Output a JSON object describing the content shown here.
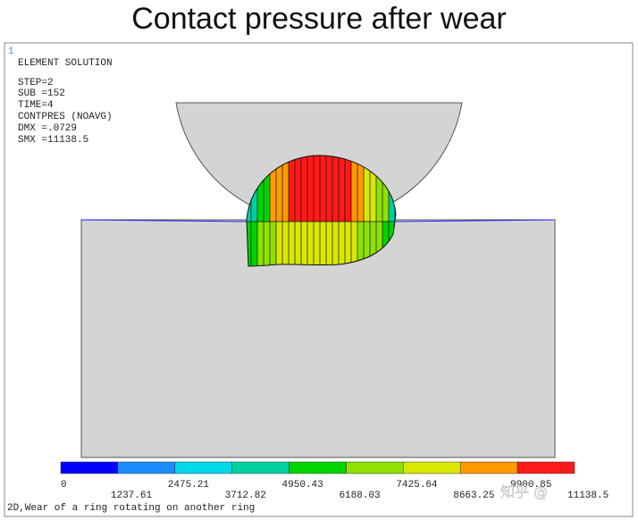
{
  "title": "Contact pressure after wear",
  "corner_label": "1",
  "info": [
    "ELEMENT SOLUTION",
    "STEP=2",
    "SUB =152",
    "TIME=4",
    "CONTPRES (NOAVG)",
    "DMX =.0729",
    "SMX =11138.5"
  ],
  "legend": {
    "colors": [
      "#0000ff",
      "#1a8cff",
      "#00d8e8",
      "#00d0a0",
      "#00d400",
      "#90e000",
      "#d8e800",
      "#ff9a00",
      "#ff1a1a"
    ],
    "labels": [
      "0",
      "1237.61",
      "2475.21",
      "3712.82",
      "4950.43",
      "6188.03",
      "7425.64",
      "8663.25",
      "9900.85",
      "11138.5"
    ]
  },
  "caption": "2D,Wear of a ring rotating on another ring",
  "watermark": "知乎 @"
}
